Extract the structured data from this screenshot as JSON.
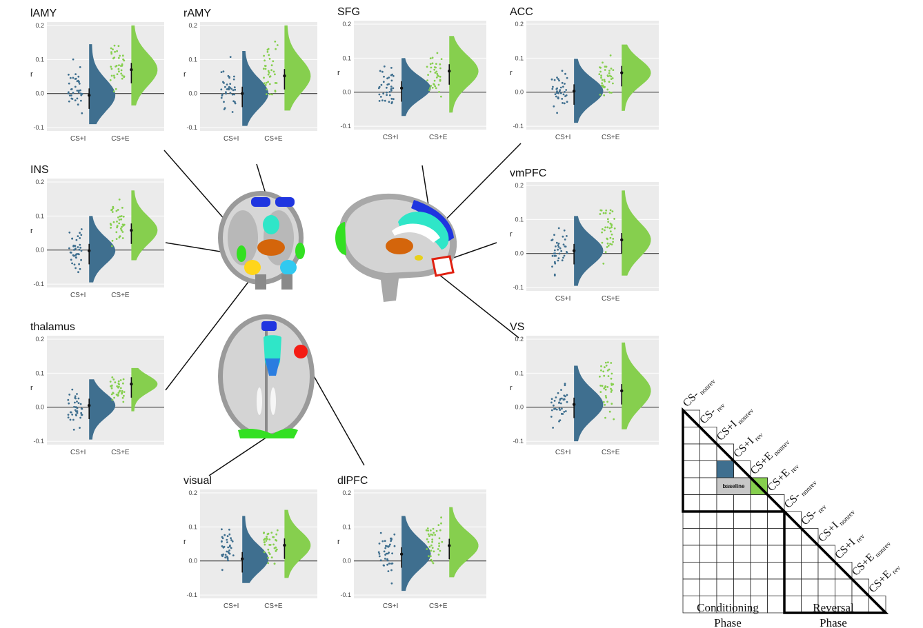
{
  "colors": {
    "cs_i": "#3f6f8f",
    "cs_e": "#86cf4e",
    "panel_bg": "#ebebeb",
    "grid": "#ffffff"
  },
  "ylabel": "r",
  "chart_data": [
    {
      "type": "raincloud",
      "title": "lAMY",
      "ylabel": "r",
      "ylim": [
        -0.1,
        0.2
      ],
      "ticks": [
        -0.1,
        0,
        0.1,
        0.2
      ],
      "categories": [
        "CS+I",
        "CS+E"
      ],
      "means": [
        -0.005,
        0.07
      ],
      "ranges": [
        [
          -0.09,
          0.145
        ],
        [
          -0.035,
          0.2
        ]
      ]
    },
    {
      "type": "raincloud",
      "title": "rAMY",
      "ylabel": "r",
      "ylim": [
        -0.1,
        0.2
      ],
      "ticks": [
        -0.1,
        0,
        0.1,
        0.2
      ],
      "categories": [
        "CS+I",
        "CS+E"
      ],
      "means": [
        0.0,
        0.052
      ],
      "ranges": [
        [
          -0.095,
          0.125
        ],
        [
          -0.05,
          0.2
        ]
      ]
    },
    {
      "type": "raincloud",
      "title": "SFG",
      "ylabel": "r",
      "ylim": [
        -0.1,
        0.2
      ],
      "ticks": [
        -0.1,
        0,
        0.1,
        0.2
      ],
      "categories": [
        "CS+I",
        "CS+E"
      ],
      "means": [
        0.012,
        0.062
      ],
      "ranges": [
        [
          -0.07,
          0.1
        ],
        [
          -0.06,
          0.165
        ]
      ]
    },
    {
      "type": "raincloud",
      "title": "ACC",
      "ylabel": "r",
      "ylim": [
        -0.1,
        0.2
      ],
      "ticks": [
        -0.1,
        0,
        0.1,
        0.2
      ],
      "categories": [
        "CS+I",
        "CS+E"
      ],
      "means": [
        0.003,
        0.057
      ],
      "ranges": [
        [
          -0.09,
          0.098
        ],
        [
          -0.055,
          0.14
        ]
      ]
    },
    {
      "type": "raincloud",
      "title": "INS",
      "ylabel": "r",
      "ylim": [
        -0.1,
        0.2
      ],
      "ticks": [
        -0.1,
        0,
        0.1,
        0.2
      ],
      "categories": [
        "CS+I",
        "CS+E"
      ],
      "means": [
        -0.002,
        0.058
      ],
      "ranges": [
        [
          -0.095,
          0.1
        ],
        [
          -0.03,
          0.175
        ]
      ]
    },
    {
      "type": "raincloud",
      "title": "vmPFC",
      "ylabel": "r",
      "ylim": [
        -0.1,
        0.2
      ],
      "ticks": [
        -0.1,
        0,
        0.1,
        0.2
      ],
      "categories": [
        "CS+I",
        "CS+E"
      ],
      "means": [
        0.008,
        0.04
      ],
      "ranges": [
        [
          -0.095,
          0.11
        ],
        [
          -0.065,
          0.185
        ]
      ]
    },
    {
      "type": "raincloud",
      "title": "thalamus",
      "ylabel": "r",
      "ylim": [
        -0.1,
        0.2
      ],
      "ticks": [
        -0.1,
        0,
        0.1,
        0.2
      ],
      "categories": [
        "CS+I",
        "CS+E"
      ],
      "means": [
        0.005,
        0.068
      ],
      "ranges": [
        [
          -0.095,
          0.082
        ],
        [
          -0.012,
          0.115
        ]
      ]
    },
    {
      "type": "raincloud",
      "title": "VS",
      "ylabel": "r",
      "ylim": [
        -0.1,
        0.2
      ],
      "ticks": [
        -0.1,
        0,
        0.1,
        0.2
      ],
      "categories": [
        "CS+I",
        "CS+E"
      ],
      "means": [
        0.008,
        0.048
      ],
      "ranges": [
        [
          -0.1,
          0.122
        ],
        [
          -0.065,
          0.19
        ]
      ]
    },
    {
      "type": "raincloud",
      "title": "visual",
      "ylabel": "r",
      "ylim": [
        -0.1,
        0.2
      ],
      "ticks": [
        -0.1,
        0,
        0.1,
        0.2
      ],
      "categories": [
        "CS+I",
        "CS+E"
      ],
      "means": [
        0.006,
        0.046
      ],
      "ranges": [
        [
          -0.065,
          0.132
        ],
        [
          -0.05,
          0.15
        ]
      ]
    },
    {
      "type": "raincloud",
      "title": "dlPFC",
      "ylabel": "r",
      "ylim": [
        -0.1,
        0.2
      ],
      "ticks": [
        -0.1,
        0,
        0.1,
        0.2
      ],
      "categories": [
        "CS+I",
        "CS+E"
      ],
      "means": [
        0.02,
        0.045
      ],
      "ranges": [
        [
          -0.088,
          0.132
        ],
        [
          -0.048,
          0.158
        ]
      ]
    }
  ],
  "matrix": {
    "labels": [
      "CS-",
      "CS-",
      "CS+I",
      "CS+I",
      "CS+E",
      "CS+E",
      "CS-",
      "CS-",
      "CS+I",
      "CS+I",
      "CS+E",
      "CS+E"
    ],
    "subscripts": [
      "nonrev",
      "rev",
      "nonrev",
      "rev",
      "nonrev",
      "rev",
      "nonrev",
      "rev",
      "nonrev",
      "rev",
      "nonrev",
      "rev"
    ],
    "baseline_label": "baseline",
    "phase_conditioning": [
      "Conditioning",
      "Phase"
    ],
    "phase_reversal": [
      "Reversal",
      "Phase"
    ]
  }
}
